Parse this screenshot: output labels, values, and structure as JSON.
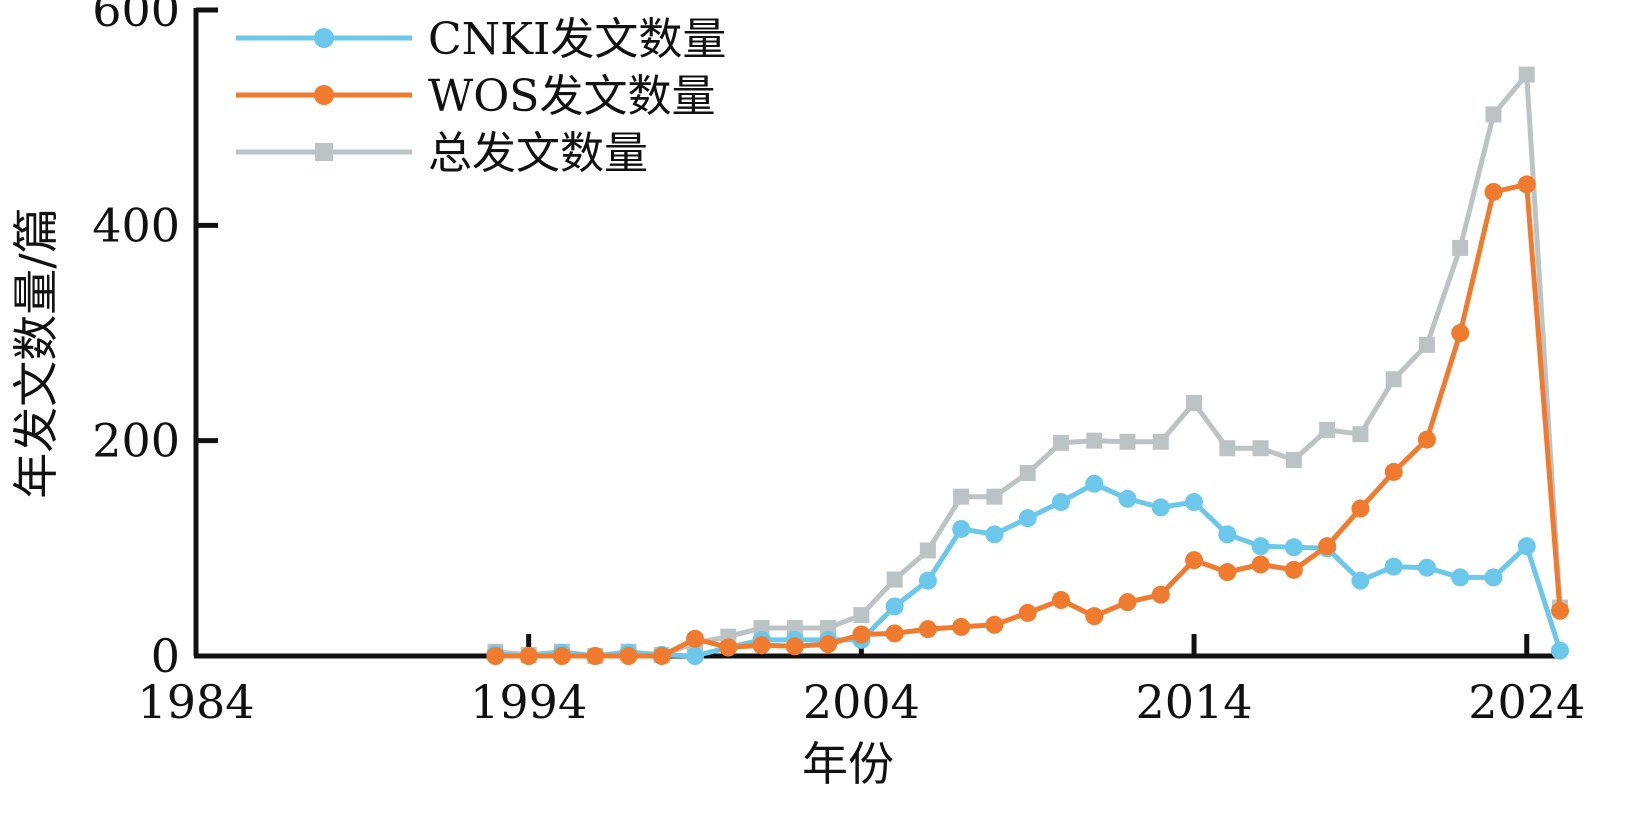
{
  "chart_data": {
    "type": "line",
    "xlabel": "年份",
    "ylabel": "年发文数量/篇",
    "xlim": [
      1984,
      2025
    ],
    "ylim": [
      0,
      600
    ],
    "xticks": [
      "1984",
      "1994",
      "2004",
      "2014",
      "2024"
    ],
    "yticks": [
      "0",
      "200",
      "400",
      "600"
    ],
    "legend_position": "top-left",
    "grid": false,
    "x": [
      1993,
      1994,
      1995,
      1996,
      1997,
      1998,
      1999,
      2000,
      2001,
      2002,
      2003,
      2004,
      2005,
      2006,
      2007,
      2008,
      2009,
      2010,
      2011,
      2012,
      2013,
      2014,
      2015,
      2016,
      2017,
      2018,
      2019,
      2020,
      2021,
      2022,
      2023,
      2024,
      2025
    ],
    "series": [
      {
        "name": "CNKI发文数量",
        "color": "#6cc8ea",
        "marker": "circle",
        "values": [
          2,
          0,
          3,
          0,
          3,
          1,
          0,
          8,
          15,
          15,
          15,
          15,
          46,
          70,
          118,
          113,
          128,
          143,
          160,
          146,
          138,
          143,
          113,
          102,
          101,
          100,
          70,
          83,
          82,
          73,
          73,
          102,
          5
        ]
      },
      {
        "name": "WOS发文数量",
        "color": "#f07b2e",
        "marker": "circle",
        "values": [
          0,
          0,
          0,
          0,
          0,
          0,
          16,
          8,
          10,
          9,
          11,
          20,
          21,
          25,
          27,
          29,
          40,
          52,
          37,
          50,
          57,
          89,
          78,
          85,
          80,
          102,
          137,
          171,
          201,
          300,
          431,
          438,
          42
        ]
      },
      {
        "name": "总发文数量",
        "color": "#bcc3c4",
        "marker": "square",
        "values": [
          4,
          1,
          4,
          0,
          4,
          1,
          12,
          18,
          26,
          26,
          26,
          38,
          71,
          98,
          148,
          148,
          170,
          198,
          200,
          199,
          199,
          235,
          193,
          193,
          182,
          210,
          206,
          257,
          289,
          379,
          503,
          540,
          45
        ]
      }
    ]
  }
}
